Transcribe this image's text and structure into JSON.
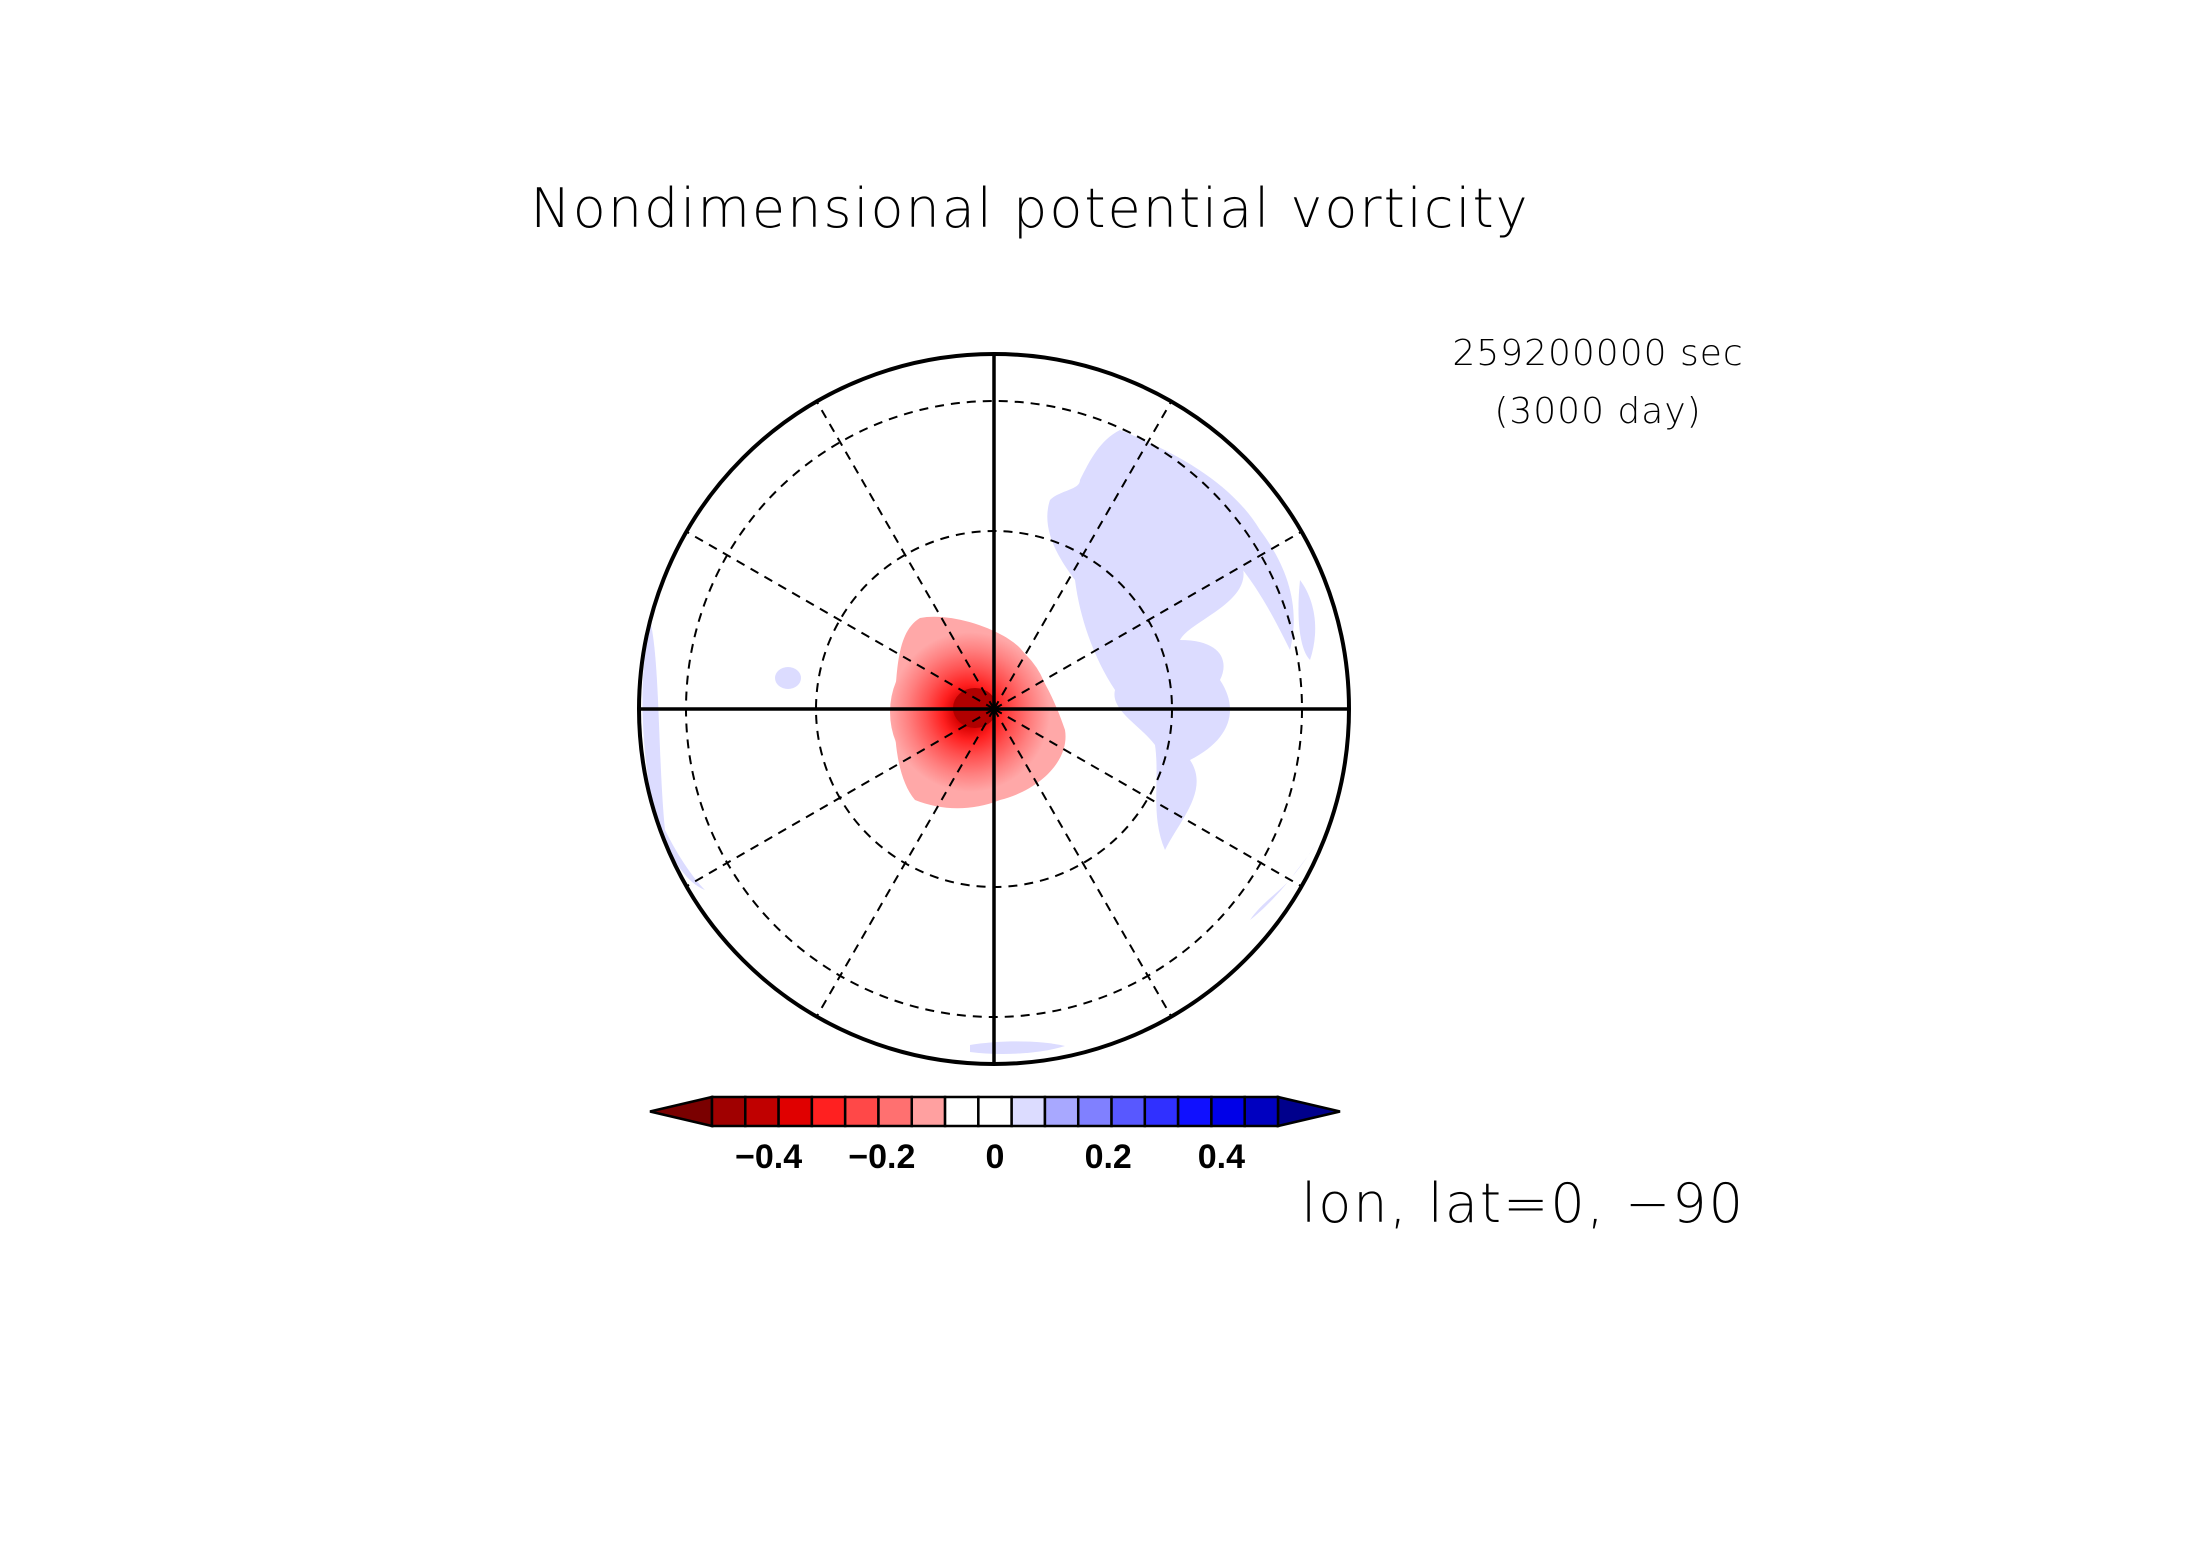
{
  "title": "Nondimensional potential vorticity",
  "time": {
    "seconds": "259200000 sec",
    "days": "(3000 day)"
  },
  "axis_label": "lon, lat=0, −90",
  "colorbar": {
    "ticks": [
      {
        "value": -0.4,
        "label": "−0.4"
      },
      {
        "value": -0.2,
        "label": "−0.2"
      },
      {
        "value": 0,
        "label": "0"
      },
      {
        "value": 0.2,
        "label": "0.2"
      },
      {
        "value": 0.4,
        "label": "0.4"
      }
    ],
    "range": [
      -0.55,
      0.55
    ],
    "step": 0.05,
    "under_color": "#7a0000",
    "over_color": "#00008c",
    "colors": [
      "#7a0000",
      "#a00000",
      "#c00000",
      "#e00000",
      "#ff2020",
      "#ff4848",
      "#ff7070",
      "#ffa0a0",
      "#ffffff",
      "#ffffff",
      "#dcdcff",
      "#a8a8ff",
      "#8080ff",
      "#5858ff",
      "#3030ff",
      "#1010ff",
      "#0000e8",
      "#0000c0",
      "#00008c"
    ]
  },
  "map": {
    "projection": "polar stereographic",
    "center": "south pole",
    "graticule_longitude_step_deg": 30,
    "graticule_latitude_circles": 3
  }
}
